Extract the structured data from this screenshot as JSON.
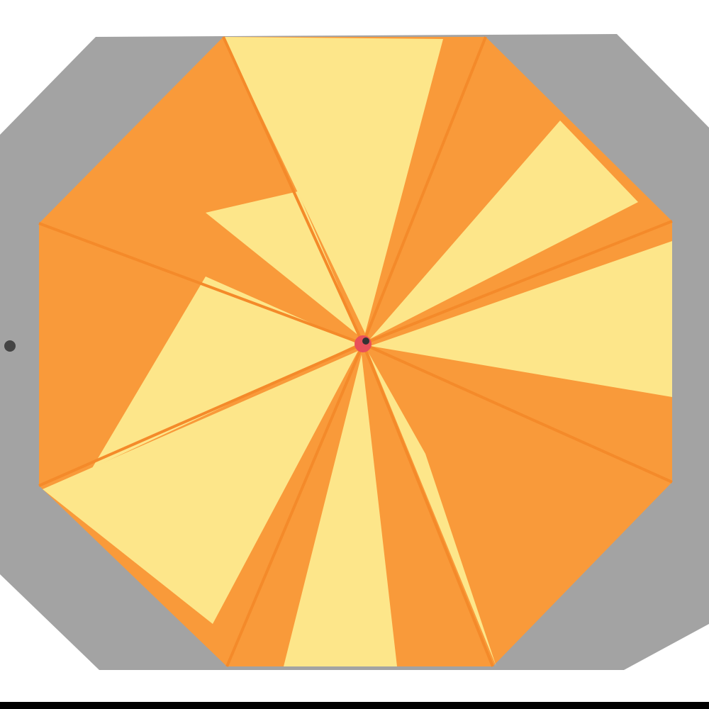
{
  "image": {
    "subject": "umbrella",
    "colors": {
      "background": "#ffffff",
      "underside": "#a3a3a3",
      "panel_orange": "#f99a3a",
      "panel_yellow": "#fde68a",
      "rib": "#f48a2a",
      "tip": "#e8505a",
      "bottom_bar": "#000000"
    }
  }
}
